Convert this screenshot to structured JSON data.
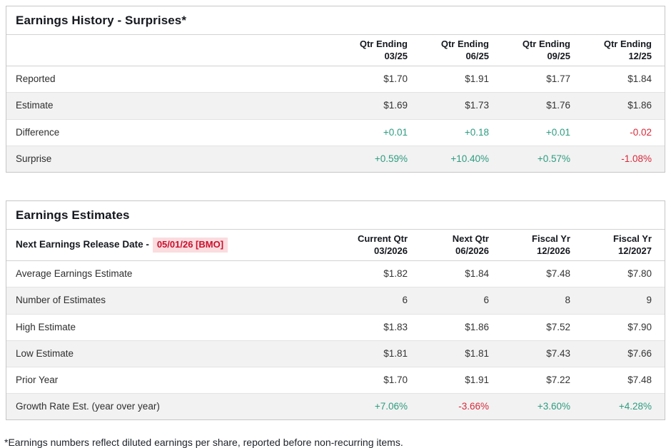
{
  "footnote": "*Earnings numbers reflect diluted earnings per share, reported before non-recurring items.",
  "colors": {
    "positive": "#2D9C7F",
    "negative": "#D6293A",
    "release_date_text": "#C8102E",
    "release_date_bg": "#FBDCDF"
  },
  "chart_data": [
    {
      "type": "table",
      "title": "Earnings History - Surprises*",
      "columns": [
        "Qtr Ending\n03/25",
        "Qtr Ending\n06/25",
        "Qtr Ending\n09/25",
        "Qtr Ending\n12/25"
      ],
      "rows": [
        {
          "label": "Reported",
          "values": [
            {
              "text": "$1.70",
              "tone": ""
            },
            {
              "text": "$1.91",
              "tone": ""
            },
            {
              "text": "$1.77",
              "tone": ""
            },
            {
              "text": "$1.84",
              "tone": ""
            }
          ]
        },
        {
          "label": "Estimate",
          "values": [
            {
              "text": "$1.69",
              "tone": ""
            },
            {
              "text": "$1.73",
              "tone": ""
            },
            {
              "text": "$1.76",
              "tone": ""
            },
            {
              "text": "$1.86",
              "tone": ""
            }
          ]
        },
        {
          "label": "Difference",
          "values": [
            {
              "text": "+0.01",
              "tone": "pos"
            },
            {
              "text": "+0.18",
              "tone": "pos"
            },
            {
              "text": "+0.01",
              "tone": "pos"
            },
            {
              "text": "-0.02",
              "tone": "neg"
            }
          ]
        },
        {
          "label": "Surprise",
          "values": [
            {
              "text": "+0.59%",
              "tone": "pos"
            },
            {
              "text": "+10.40%",
              "tone": "pos"
            },
            {
              "text": "+0.57%",
              "tone": "pos"
            },
            {
              "text": "-1.08%",
              "tone": "neg"
            }
          ]
        }
      ]
    },
    {
      "type": "table",
      "title": "Earnings Estimates",
      "release_label": "Next Earnings Release Date -",
      "release_date": "05/01/26 [BMO]",
      "columns": [
        "Current Qtr\n03/2026",
        "Next Qtr\n06/2026",
        "Fiscal Yr\n12/2026",
        "Fiscal Yr\n12/2027"
      ],
      "rows": [
        {
          "label": "Average Earnings Estimate",
          "values": [
            {
              "text": "$1.82",
              "tone": ""
            },
            {
              "text": "$1.84",
              "tone": ""
            },
            {
              "text": "$7.48",
              "tone": ""
            },
            {
              "text": "$7.80",
              "tone": ""
            }
          ]
        },
        {
          "label": "Number of Estimates",
          "values": [
            {
              "text": "6",
              "tone": ""
            },
            {
              "text": "6",
              "tone": ""
            },
            {
              "text": "8",
              "tone": ""
            },
            {
              "text": "9",
              "tone": ""
            }
          ]
        },
        {
          "label": "High Estimate",
          "values": [
            {
              "text": "$1.83",
              "tone": ""
            },
            {
              "text": "$1.86",
              "tone": ""
            },
            {
              "text": "$7.52",
              "tone": ""
            },
            {
              "text": "$7.90",
              "tone": ""
            }
          ]
        },
        {
          "label": "Low Estimate",
          "values": [
            {
              "text": "$1.81",
              "tone": ""
            },
            {
              "text": "$1.81",
              "tone": ""
            },
            {
              "text": "$7.43",
              "tone": ""
            },
            {
              "text": "$7.66",
              "tone": ""
            }
          ]
        },
        {
          "label": "Prior Year",
          "values": [
            {
              "text": "$1.70",
              "tone": ""
            },
            {
              "text": "$1.91",
              "tone": ""
            },
            {
              "text": "$7.22",
              "tone": ""
            },
            {
              "text": "$7.48",
              "tone": ""
            }
          ]
        },
        {
          "label": "Growth Rate Est. (year over year)",
          "values": [
            {
              "text": "+7.06%",
              "tone": "pos"
            },
            {
              "text": "-3.66%",
              "tone": "neg"
            },
            {
              "text": "+3.60%",
              "tone": "pos"
            },
            {
              "text": "+4.28%",
              "tone": "pos"
            }
          ]
        }
      ]
    }
  ]
}
